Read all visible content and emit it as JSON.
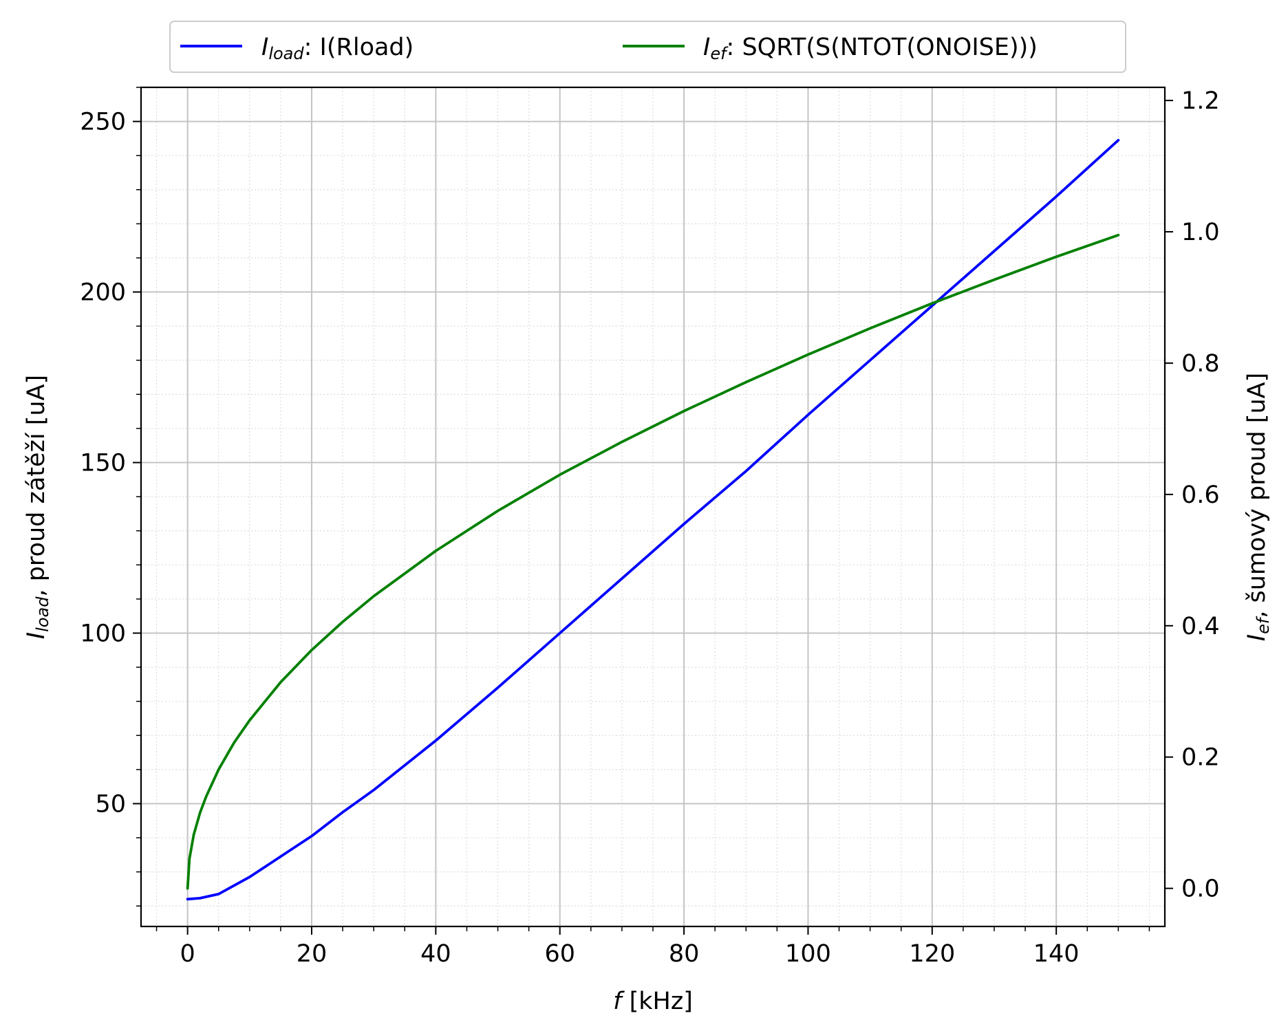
{
  "chart_data": {
    "type": "line",
    "xlabel": "f [kHz]",
    "xlabel_italic": "f",
    "xlabel_rest": " [kHz]",
    "xlim": [
      -7.5,
      157.5
    ],
    "xticks": [
      0,
      20,
      40,
      60,
      80,
      100,
      120,
      140
    ],
    "grid": true,
    "y_left": {
      "label_main": "I",
      "label_sub": "load",
      "label_rest": ", proud zátěží [uA]",
      "ylim": [
        14,
        260
      ],
      "ticks": [
        50,
        100,
        150,
        200,
        250
      ]
    },
    "y_right": {
      "label_main": "I",
      "label_sub": "ef",
      "label_rest": ", šumový proud [uA]",
      "ylim": [
        -0.058,
        1.22
      ],
      "ticks": [
        0.0,
        0.2,
        0.4,
        0.6,
        0.8,
        1.0,
        1.2
      ],
      "tick_labels": [
        "0.0",
        "0.2",
        "0.4",
        "0.6",
        "0.8",
        "1.0",
        "1.2"
      ]
    },
    "legend": {
      "placement": "top-center, above plot",
      "entries": [
        {
          "main": "I",
          "sub": "load",
          "text": ":  I(Rload)",
          "color": "#0000ff"
        },
        {
          "main": "I",
          "sub": "ef",
          "text": ":  SQRT(S(NTOT(ONOISE)))",
          "color": "#008000"
        }
      ]
    },
    "series": [
      {
        "axis": "left",
        "color": "#0000ff",
        "x": [
          0,
          2,
          5,
          10,
          15,
          20,
          25,
          30,
          40,
          50,
          60,
          70,
          80,
          90,
          100,
          110,
          120,
          130,
          140,
          150
        ],
        "y": [
          22,
          22.3,
          23.5,
          28.5,
          34.5,
          40.5,
          47.5,
          54,
          68.5,
          84,
          100,
          116,
          132,
          147.5,
          164,
          180,
          196,
          212,
          228,
          244.5
        ]
      },
      {
        "axis": "right",
        "color": "#008000",
        "x": [
          0,
          0.3,
          1,
          2,
          3,
          5,
          7.5,
          10,
          15,
          20,
          25,
          30,
          40,
          50,
          60,
          70,
          80,
          90,
          100,
          110,
          120,
          130,
          140,
          150
        ],
        "y": [
          0.0,
          0.045,
          0.082,
          0.115,
          0.14,
          0.181,
          0.222,
          0.256,
          0.314,
          0.363,
          0.406,
          0.445,
          0.514,
          0.575,
          0.63,
          0.68,
          0.727,
          0.771,
          0.813,
          0.853,
          0.891,
          0.927,
          0.962,
          0.995
        ]
      }
    ]
  }
}
